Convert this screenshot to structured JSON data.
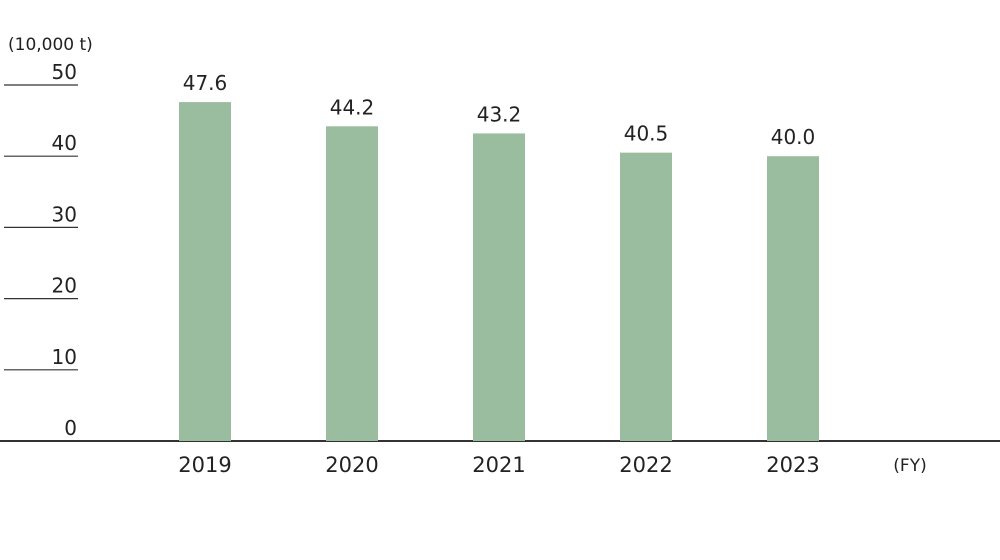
{
  "chart_data": {
    "type": "bar",
    "unit_label": "(10,000 t)",
    "x_label": "(FY)",
    "categories": [
      "2019",
      "2020",
      "2021",
      "2022",
      "2023"
    ],
    "values": [
      47.6,
      44.2,
      43.2,
      40.5,
      40.0
    ],
    "value_labels": [
      "47.6",
      "44.2",
      "43.2",
      "40.5",
      "40.0"
    ],
    "color": "#9bbd9f",
    "ylim": [
      0,
      50
    ],
    "yticks": [
      0,
      10,
      20,
      30,
      40,
      50
    ]
  }
}
